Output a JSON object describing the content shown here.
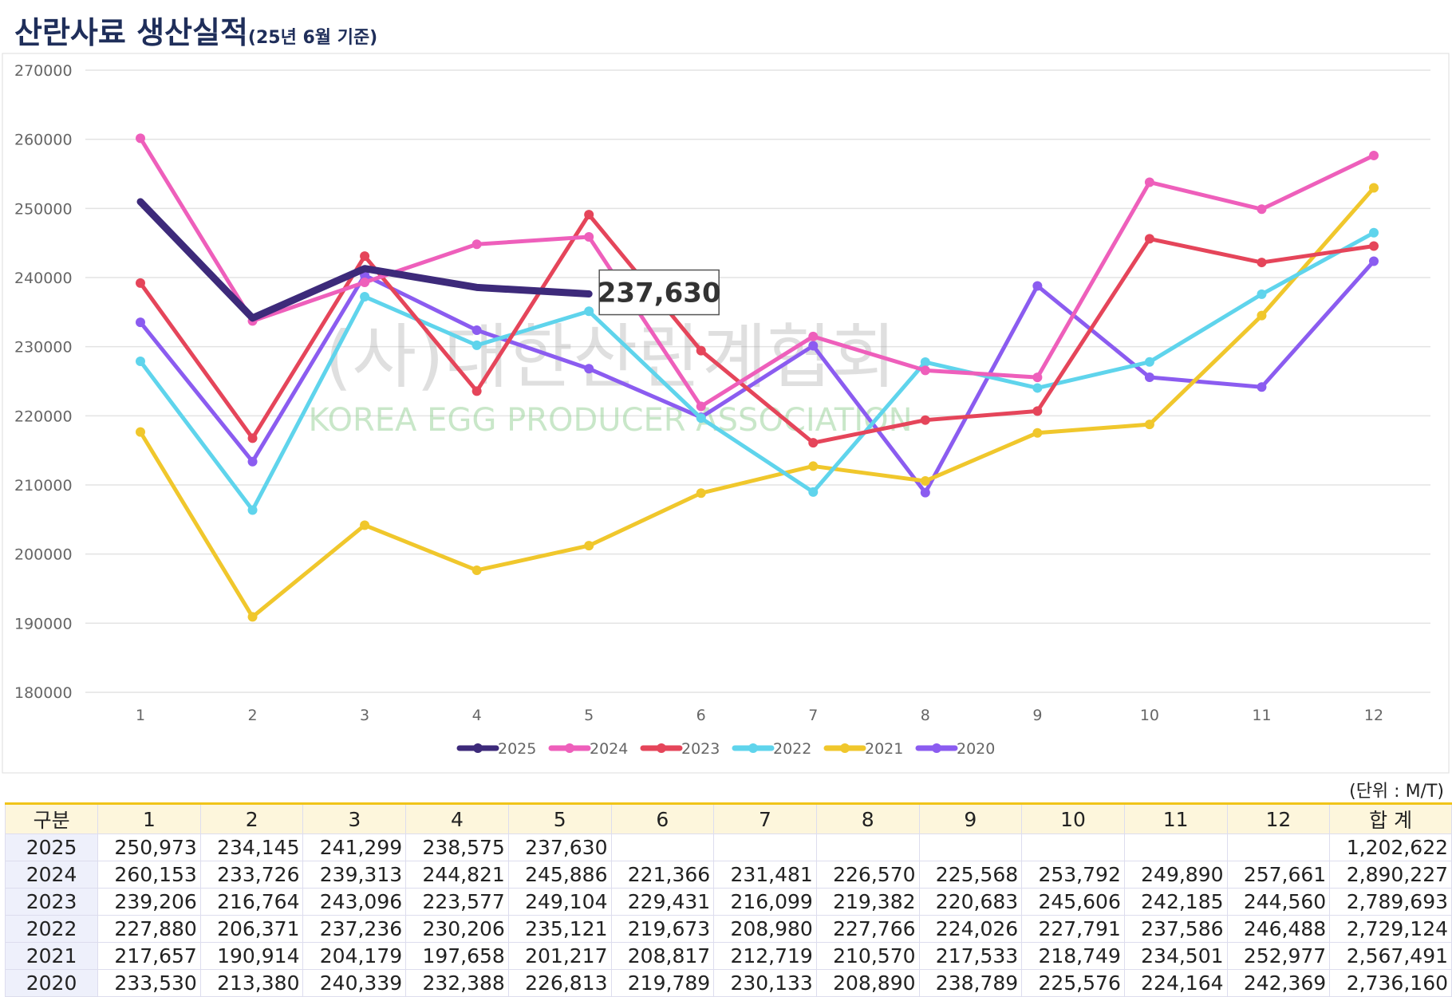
{
  "title": "산란사료 생산실적",
  "subtitle": "(25년 6월 기준)",
  "chart_data": {
    "type": "line",
    "watermark": "(사)대한산란계협회",
    "watermark_sub": "KOREA EGG PRODUCER ASSOCIATION",
    "categories": [
      "1",
      "2",
      "3",
      "4",
      "5",
      "6",
      "7",
      "8",
      "9",
      "10",
      "11",
      "12"
    ],
    "ylim": [
      180000,
      270000
    ],
    "yticks": [
      180000,
      190000,
      200000,
      210000,
      220000,
      230000,
      240000,
      250000,
      260000,
      270000
    ],
    "grid": true,
    "legend": "bottom",
    "series": [
      {
        "name": "2025",
        "color": "#3d2a7a",
        "values": [
          250973,
          234145,
          241299,
          238575,
          237630,
          null,
          null,
          null,
          null,
          null,
          null,
          null
        ],
        "value_labels": [
          null,
          null,
          null,
          null,
          "237,630",
          null,
          null,
          null,
          null,
          null,
          null,
          null
        ]
      },
      {
        "name": "2024",
        "color": "#ee5fbb",
        "values": [
          260153,
          233726,
          239313,
          244821,
          245886,
          221366,
          231481,
          226570,
          225568,
          253792,
          249890,
          257661
        ]
      },
      {
        "name": "2023",
        "color": "#e5455a",
        "values": [
          239206,
          216764,
          243096,
          223577,
          249104,
          229431,
          216099,
          219382,
          220683,
          245606,
          242185,
          244560
        ]
      },
      {
        "name": "2022",
        "color": "#5fd4ec",
        "values": [
          227880,
          206371,
          237236,
          230206,
          235121,
          219673,
          208980,
          227766,
          224026,
          227791,
          237586,
          246488
        ]
      },
      {
        "name": "2021",
        "color": "#f0c72c",
        "values": [
          217657,
          190914,
          204179,
          197658,
          201217,
          208817,
          212719,
          210570,
          217533,
          218749,
          234501,
          252977
        ]
      },
      {
        "name": "2020",
        "color": "#8b5cf0",
        "values": [
          233530,
          213380,
          240339,
          232388,
          226813,
          219789,
          230133,
          208890,
          238789,
          225576,
          224164,
          242369
        ]
      }
    ]
  },
  "table": {
    "unit": "(단위 : M/T)",
    "header": [
      "구분",
      "1",
      "2",
      "3",
      "4",
      "5",
      "6",
      "7",
      "8",
      "9",
      "10",
      "11",
      "12",
      "합 계"
    ],
    "rows": [
      [
        "2025",
        "250,973",
        "234,145",
        "241,299",
        "238,575",
        "237,630",
        null,
        null,
        null,
        null,
        null,
        null,
        null,
        "1,202,622"
      ],
      [
        "2024",
        "260,153",
        "233,726",
        "239,313",
        "244,821",
        "245,886",
        "221,366",
        "231,481",
        "226,570",
        "225,568",
        "253,792",
        "249,890",
        "257,661",
        "2,890,227"
      ],
      [
        "2023",
        "239,206",
        "216,764",
        "243,096",
        "223,577",
        "249,104",
        "229,431",
        "216,099",
        "219,382",
        "220,683",
        "245,606",
        "242,185",
        "244,560",
        "2,789,693"
      ],
      [
        "2022",
        "227,880",
        "206,371",
        "237,236",
        "230,206",
        "235,121",
        "219,673",
        "208,980",
        "227,766",
        "224,026",
        "227,791",
        "237,586",
        "246,488",
        "2,729,124"
      ],
      [
        "2021",
        "217,657",
        "190,914",
        "204,179",
        "197,658",
        "201,217",
        "208,817",
        "212,719",
        "210,570",
        "217,533",
        "218,749",
        "234,501",
        "252,977",
        "2,567,491"
      ],
      [
        "2020",
        "233,530",
        "213,380",
        "240,339",
        "232,388",
        "226,813",
        "219,789",
        "230,133",
        "208,890",
        "238,789",
        "225,576",
        "224,164",
        "242,369",
        "2,736,160"
      ]
    ]
  }
}
